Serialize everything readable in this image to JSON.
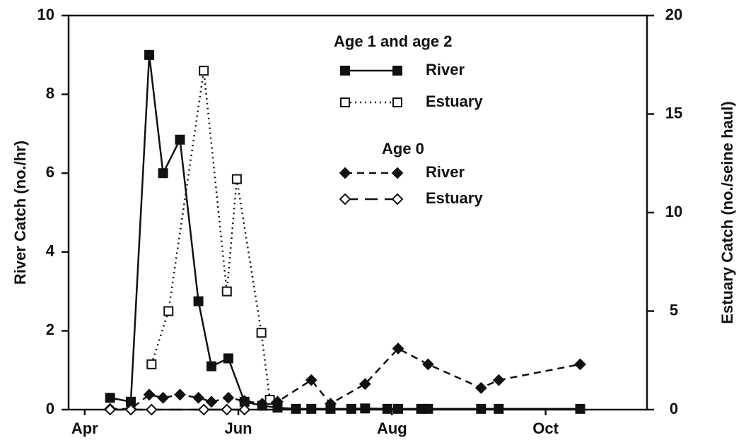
{
  "chart_data": {
    "type": "line",
    "ylabel": "River Catch (no./hr)",
    "y2label": "Estuary Catch (no./seine haul)",
    "legend_titles": [
      "Age 1 and age 2",
      "Age 0"
    ],
    "xlim": [
      3.79,
      11.32
    ],
    "xticks": [
      {
        "value": 4,
        "label": "Apr"
      },
      {
        "value": 6,
        "label": "Jun"
      },
      {
        "value": 8,
        "label": "Aug"
      },
      {
        "value": 10,
        "label": "Oct"
      }
    ],
    "ylim": [
      0,
      10
    ],
    "yticks": [
      0,
      2,
      4,
      6,
      8,
      10
    ],
    "y2lim": [
      0,
      20
    ],
    "y2ticks": [
      0,
      5,
      10,
      15,
      20
    ],
    "series": [
      {
        "name": "River",
        "color": "#111111",
        "marker": "square",
        "filled": true,
        "line": "solid",
        "x": [
          4.33,
          4.6,
          4.84,
          5.02,
          5.24,
          5.48,
          5.65,
          5.87,
          6.08,
          6.31,
          6.51,
          6.75,
          6.95,
          7.2,
          7.47,
          7.65,
          7.94,
          8.08,
          8.38,
          8.47,
          9.16,
          9.39,
          10.45
        ],
        "values": [
          0.3,
          0.2,
          9.0,
          6.0,
          6.85,
          2.75,
          1.1,
          1.3,
          0.2,
          0.1,
          0.05,
          0.02,
          0.02,
          0.02,
          0.02,
          0.03,
          0.02,
          0.02,
          0.02,
          0.02,
          0.02,
          0.02,
          0.02
        ]
      },
      {
        "name": "Estuary",
        "color": "#111111",
        "marker": "square",
        "filled": false,
        "line": "dotted",
        "axis": "y2",
        "x": [
          4.87,
          5.09,
          5.55,
          5.85,
          5.98,
          6.3,
          6.41
        ],
        "values": [
          2.3,
          5.0,
          17.2,
          6.0,
          11.7,
          3.9,
          0.5
        ]
      },
      {
        "name": "River",
        "color": "#111111",
        "marker": "diamond",
        "filled": true,
        "line": "dashed",
        "x": [
          4.33,
          4.6,
          4.84,
          5.02,
          5.24,
          5.48,
          5.65,
          5.87,
          6.08,
          6.31,
          6.51,
          6.95,
          7.2,
          7.65,
          8.08,
          8.47,
          9.16,
          9.39,
          10.45
        ],
        "values": [
          0.02,
          0.02,
          0.38,
          0.3,
          0.38,
          0.3,
          0.2,
          0.3,
          0.22,
          0.15,
          0.2,
          0.75,
          0.15,
          0.65,
          1.55,
          1.15,
          0.55,
          0.75,
          1.15
        ]
      },
      {
        "name": "Estuary",
        "color": "#111111",
        "marker": "diamond",
        "filled": false,
        "line": "longdash",
        "axis": "y2",
        "x": [
          4.33,
          4.6,
          4.87,
          5.55,
          5.85,
          6.08
        ],
        "values": [
          0,
          0,
          0,
          0,
          0,
          0
        ]
      }
    ]
  }
}
